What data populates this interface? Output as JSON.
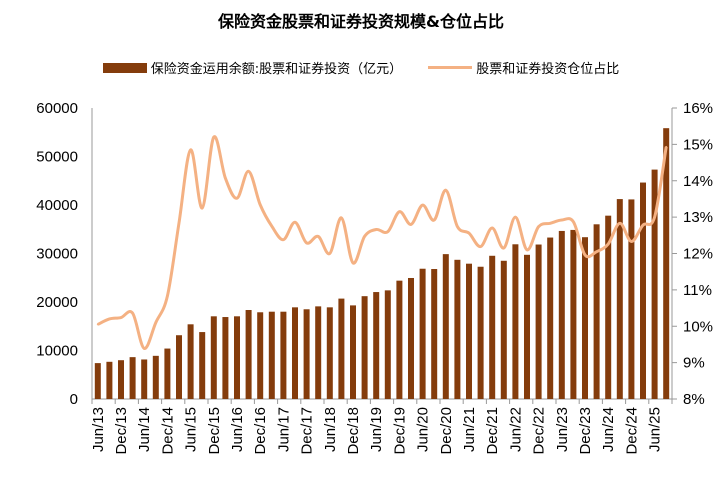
{
  "chart_data": {
    "type": "bar+line",
    "title": "保险资金股票和证券投资规模&仓位占比",
    "legend_position": "top",
    "grid": false,
    "categories": [
      "Jun/13",
      "Sep/13",
      "Dec/13",
      "Mar/14",
      "Jun/14",
      "Sep/14",
      "Dec/14",
      "Mar/15",
      "Jun/15",
      "Sep/15",
      "Dec/15",
      "Mar/16",
      "Jun/16",
      "Sep/16",
      "Dec/16",
      "Mar/17",
      "Jun/17",
      "Sep/17",
      "Dec/17",
      "Mar/18",
      "Jun/18",
      "Sep/18",
      "Dec/18",
      "Mar/19",
      "Jun/19",
      "Sep/19",
      "Dec/19",
      "Mar/20",
      "Jun/20",
      "Sep/20",
      "Dec/20",
      "Mar/21",
      "Jun/21",
      "Sep/21",
      "Dec/21",
      "Mar/22",
      "Jun/22",
      "Sep/22",
      "Dec/22",
      "Mar/23",
      "Jun/23",
      "Sep/23",
      "Dec/23",
      "Mar/24",
      "Jun/24",
      "Sep/24",
      "Dec/24",
      "Mar/25",
      "Jun/25",
      "Sep/25"
    ],
    "x_tick_labels": [
      "Jun/13",
      "Dec/13",
      "Jun/14",
      "Dec/14",
      "Jun/15",
      "Dec/15",
      "Jun/16",
      "Dec/16",
      "Jun/17",
      "Dec/17",
      "Jun/18",
      "Dec/18",
      "Jun/19",
      "Dec/19",
      "Jun/20",
      "Dec/20",
      "Jun/21",
      "Dec/21",
      "Jun/22",
      "Dec/22",
      "Jun/23",
      "Dec/23",
      "Jun/24",
      "Dec/24",
      "Jun/25"
    ],
    "series": [
      {
        "name": "保险资金运用余额:股票和证券投资（亿元）",
        "type": "bar",
        "axis": "left",
        "color": "#843C0C",
        "values": [
          7400,
          7670,
          8000,
          8630,
          8150,
          8900,
          10400,
          13150,
          15400,
          13800,
          17050,
          16900,
          17050,
          18350,
          17880,
          18000,
          18000,
          18900,
          18500,
          19100,
          18900,
          20700,
          19300,
          21200,
          22050,
          22400,
          24400,
          24950,
          26860,
          26800,
          29870,
          28700,
          27900,
          27270,
          29530,
          28500,
          31900,
          29730,
          31850,
          33290,
          34650,
          34860,
          33360,
          36020,
          37800,
          41220,
          41150,
          44630,
          47300,
          55840
        ]
      },
      {
        "name": "股票和证券投资仓位占比",
        "type": "line",
        "axis": "right",
        "unit": "%",
        "color": "#F4B183",
        "values": [
          10.05,
          10.2,
          10.24,
          10.36,
          9.39,
          10.1,
          10.83,
          12.84,
          14.85,
          13.25,
          15.2,
          14.07,
          13.52,
          14.26,
          13.34,
          12.75,
          12.38,
          12.86,
          12.29,
          12.47,
          12.0,
          12.98,
          11.74,
          12.47,
          12.66,
          12.6,
          13.15,
          12.8,
          13.33,
          12.92,
          13.74,
          12.74,
          12.56,
          12.19,
          12.7,
          12.15,
          13.0,
          12.1,
          12.74,
          12.83,
          12.92,
          12.87,
          11.96,
          12.05,
          12.26,
          12.83,
          12.33,
          12.78,
          13.0,
          14.93
        ]
      }
    ],
    "y_left": {
      "lim": [
        0,
        60000
      ],
      "ticks": [
        "0",
        "10000",
        "20000",
        "30000",
        "40000",
        "50000",
        "60000"
      ]
    },
    "y_right": {
      "lim": [
        8,
        16
      ],
      "ticks": [
        "8%",
        "9%",
        "10%",
        "11%",
        "12%",
        "13%",
        "14%",
        "15%",
        "16%"
      ]
    }
  }
}
